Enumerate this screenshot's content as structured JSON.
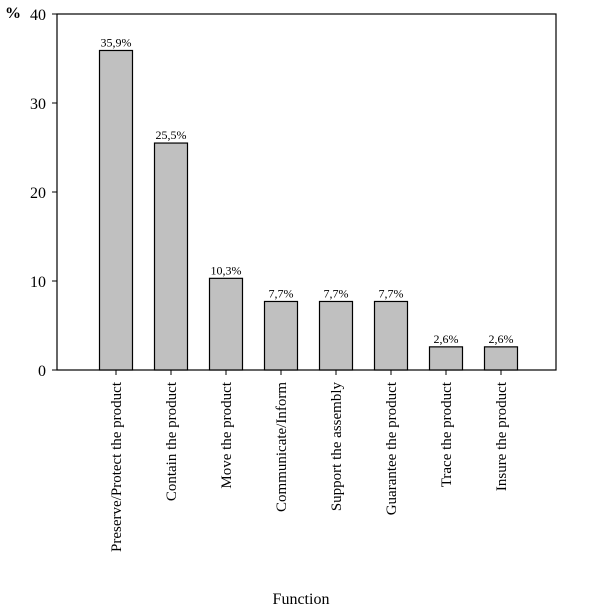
{
  "chart_data": {
    "type": "bar",
    "title": "",
    "xlabel": "Function",
    "ylabel": "%",
    "ylim": [
      0,
      40
    ],
    "yticks": [
      0,
      10,
      20,
      30,
      40
    ],
    "grid": false,
    "bar_color": "#c0c0c0",
    "categories": [
      "Preserve/Protect the product",
      "Contain the product",
      "Move the product",
      "Communicate/Inform",
      "Support the assembly",
      "Guarantee the product",
      "Trace the product",
      "Insure the product"
    ],
    "values": [
      35.9,
      25.5,
      10.3,
      7.7,
      7.7,
      7.7,
      2.6,
      2.6
    ],
    "data_labels": [
      "35,9%",
      "25,5%",
      "10,3%",
      "7,7%",
      "7,7%",
      "7,7%",
      "2,6%",
      "2,6%"
    ]
  }
}
